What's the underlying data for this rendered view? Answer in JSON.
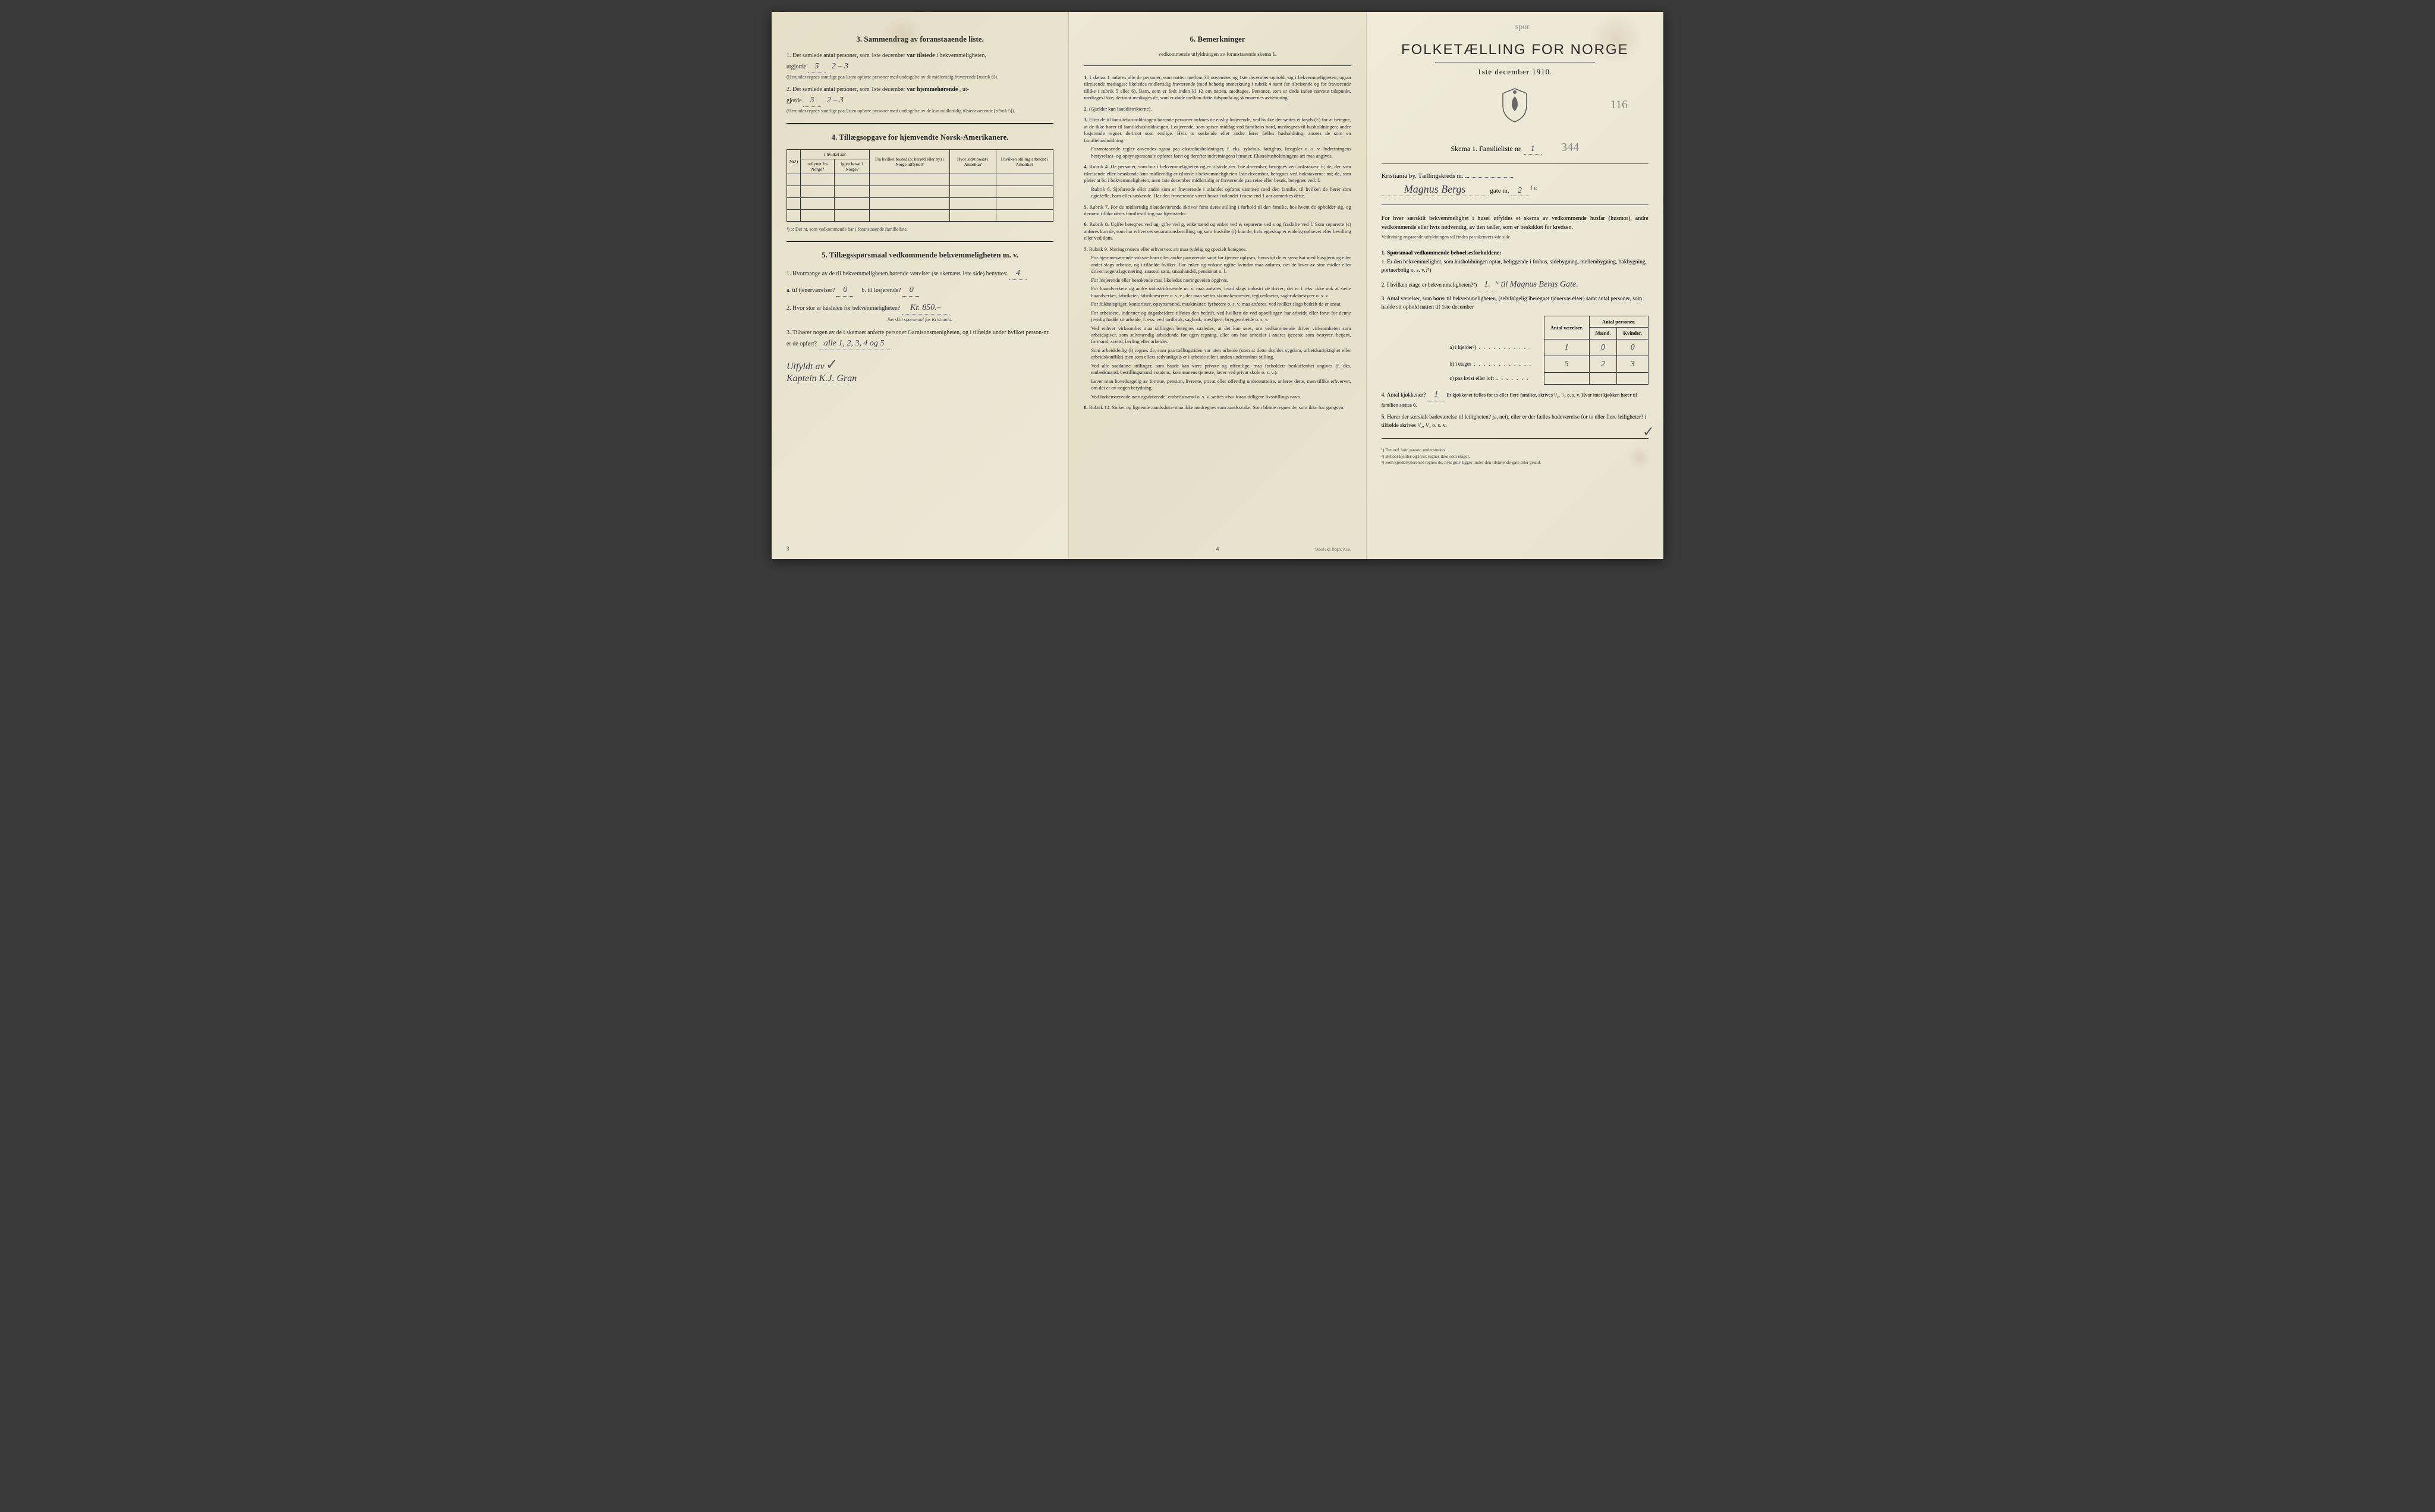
{
  "colors": {
    "paper": "#e8e2d0",
    "ink": "#2a2a2a",
    "pencil": "#888888",
    "handwriting": "#3a3a4a",
    "background": "#3a3a3a"
  },
  "left_panel": {
    "section3": {
      "title": "3.  Sammendrag av foranstaaende liste.",
      "item1_prefix": "1.  Det samlede antal personer, som 1ste december",
      "item1_bold": "var tilstede",
      "item1_suffix": "i bekvemmeligheten,",
      "item1_label": "utgjorde",
      "item1_value": "5",
      "item1_hand": "2 – 3",
      "item1_note": "(Herunder regnes samtlige paa listen opførte personer med undtagelse av de midlertidig fraværende [rubrik 6]).",
      "item2_prefix": "2.  Det samlede antal personer, som 1ste december",
      "item2_bold": "var hjemmehørende",
      "item2_suffix": ", ut-",
      "item2_label": "gjorde",
      "item2_value": "5",
      "item2_hand": "2 – 3",
      "item2_note": "(Herunder regnes samtlige paa listen opførte personer med undtagelse av de kun midlertidig tilstedeværende [rubrik 5])."
    },
    "section4": {
      "title": "4.  Tillægsopgave for hjemvendte Norsk-Amerikanere.",
      "table": {
        "headers": {
          "nr": "Nr.¹)",
          "col1_top": "I hvilket aar",
          "col1a": "utflyttet fra Norge?",
          "col1b": "igjen bosat i Norge?",
          "col2": "Fra hvilket bosted (ɔ: herred eller by) i Norge utflyttet?",
          "col3": "Hvor sidst bosat i Amerika?",
          "col4": "I hvilken stilling arbeidet i Amerika?"
        },
        "rows": 4
      },
      "footnote": "¹) ɔ: Det nr. som vedkommende har i foranstaaende familieliste."
    },
    "section5": {
      "title": "5.  Tillægsspørsmaal vedkommende bekvemmeligheten m. v.",
      "q1": "1. Hvormange av de til bekvemmeligheten hørende værelser (se skemæts 1ste side) benyttes:",
      "q1_value": "4",
      "q1a_label": "a.  til tjenerværelser?",
      "q1a_value": "0",
      "q1b_label": "b.  til losjerende?",
      "q1b_value": "0",
      "q2": "2. Hvor stor er husleien for bekvemmeligheten?",
      "q2_value": "Kr. 850.–",
      "q2_note": "Særskilt spørsmaal for Kristiania:",
      "q3": "3. Tilhører nogen av de i skemaet anførte personer Garnisonsmenigheten, og i tilfælde under hvilket person-nr. er de opført?",
      "q3_value": "alle 1, 2, 3, 4 og 5",
      "signature_prefix": "Utfyldt av",
      "signature": "Kaptein K.J. Gran"
    },
    "page_num": "3"
  },
  "middle_panel": {
    "title": "6.  Bemerkninger",
    "subtitle": "vedkommende utfyldningen av foranstaaende skema 1.",
    "items": [
      {
        "num": "1.",
        "text": "I skema 1 anføres alle de personer, som natten mellem 30 november og 1ste december opholdt sig i bekvemmeligheten; ogsaa tilreisende medtages; likeledes midlertidig fraværende (med behørig anmerkning i rubrik 4 samt for tilreisende og for fraværende tillike i rubrik 5 eller 6). Barn, som er født inden kl 12 om natten, medtages. Personer, som er døde inden nævnte tidspunkt, medtages ikke; derimot medtages de, som er døde mellem dette tidspunkt og skemaernes avhentning."
      },
      {
        "num": "2.",
        "text": "(Gjælder kun landdistrikterne)."
      },
      {
        "num": "3.",
        "text": "Efter de til familiehusholdningen hørende personer anføres de enslig losjerende, ved hvilke der sættes et kryds (×) for at betegne, at de ikke hører til familiehusholdningen. Losjerende, som spiser middag ved familiens bord, medregnes til husholdningen; andre losjerende regnes derimot som enslige. Hvis to søskende eller andre fører fælles husholdning, ansees de som en familiehusholdning.",
        "extra": "Foranstaaende regler anvendes ogsaa paa ekstrahusholdninger, f. eks. sykehus, fattighus, fængsler o. s. v. Indretningens bestyrelses- og opsynspersonale opføres først og derefter indretningens lemmer. Ekstrahusholdningens art maa angives."
      },
      {
        "num": "4.",
        "text": "Rubrik 4. De personer, som bor i bekvemmeligheten og er tilstede der 1ste december, betegnes ved bokstaven: b; de, der som tilreisende eller besøkende kun midlertidig er tilstede i bekvemmeligheten 1ste december, betegnes ved bokstaverne: mt; de, som pleier at bo i bekvemmeligheten, men 1ste december midlertidig er fraværende paa reise eller besøk, betegnes ved: f.",
        "extra": "Rubrik 6. Sjøfarende eller andre som er fraværende i utlandet opføres sammen med den familie, til hvilken de hører som egtefælle, barn eller søskende. Har den fraværende været bosat i utlandet i mere end 1 aar anmerkes dette."
      },
      {
        "num": "5.",
        "text": "Rubrik 7. For de midlertidig tilstedeværende skrives først deres stilling i forhold til den familie, hos hvem de opholder sig, og dernæst tillike deres familiestilling paa hjemstedet."
      },
      {
        "num": "6.",
        "text": "Rubrik 8. Ugifte betegnes ved ug, gifte ved g, enkemænd og enker ved e, separerte ved s og fraskilte ved f. Som separerte (s) anføres kun de, som har erhvervet separationsbevilling, og som fraskilte (f) kun de, hvis egteskap er endelig ophævet efter bevilling eller ved dom."
      },
      {
        "num": "7.",
        "text": "Rubrik 9. Næringsveiens eller erhvervets art maa tydelig og specielt betegnes.",
        "extra": "For hjemmeværende voksne barn eller andre paarørende samt for tjenere oplyses, hvorvidt de er sysselsat med husgjerning eller andet slags arbeide, og i tilfælde hvilket. For enker og voksne ugifte kvinder maa anføres, om de lever av sine midler eller driver nogenslags næring, saasom søm, smaahandel, pensionat o. l.",
        "extra2": "For losjerende eller besøkende maa likeledes næringsveien opgives.",
        "extra3": "For haandverkere og andre industridrivende m. v. maa anføres, hvad slags industri de driver; det er f. eks. ikke nok at sætte haandverker, fabrikeier, fabrikbestyrer o. s. v.; der maa sættes skomakermester, teglverkseier, sagbruksbestyrer o. s. v.",
        "extra4": "For fuldmægtiger, kontorister, opsynsmænd, maskinister, fyrbøtere o. s. v. maa anføres, ved hvilket slags bedrift de er ansat.",
        "extra5": "For arbeidere, inderster og dagarbeidere tilføies den bedrift, ved hvilken de ved optællingen har arbeide eller forut for denne jevnlig hadde sit arbeide, f. eks. ved jordbruk, sagbruk, træsliperi, bryggearbeide o. s. v.",
        "extra6": "Ved enhver virksomhet maa stillingen betegnes saaledes, at det kan sees, om vedkommende driver virksomheten som arbeidsgiver, som selvstændig arbeidende for egen regning, eller om han arbeider i andres tjeneste som bestyrer, betjent, formand, svend, lærling eller arbeider.",
        "extra7": "Som arbeidsledig (l) regnes de, som paa tællingstiden var uten arbeide (uten at dette skyldes sygdom, arbeidsudyktighet eller arbeidskonflikt) men som ellers sedvanligvis er i arbeide eller i anden underordnet stilling.",
        "extra8": "Ved alle saadanne stillinger, som baade kan være private og offentlige, maa forholdets beskaffenhet angives (f. eks. embedsmand, bestillingsmand i statens, kommunens tjeneste, lærer ved privat skole o. s. v.).",
        "extra9": "Lever man hovedsagelig av formue, pension, livrente, privat eller offentlig understøttelse, anføres dette, men tillike erhvervet, om det er av nogen betydning.",
        "extra10": "Ved forhenværende næringsdrivende, embedsmænd o. s. v. sættes «fv» foran tidligere livsstillings navn."
      },
      {
        "num": "8.",
        "text": "Rubrik 14. Sinker og lignende aandssløve maa ikke medregnes som aandssvake. Som blinde regnes de, som ikke har gangsyn."
      }
    ],
    "page_num": "4",
    "printer": "Steen'ske Bogtr.  Kr.a."
  },
  "right_panel": {
    "pencil_top": "spor",
    "main_title": "FOLKETÆLLING FOR NORGE",
    "date": "1ste december 1910.",
    "pencil_num": "116",
    "skema_label": "Skema 1.    Familieliste nr.",
    "skema_value": "1",
    "pencil_right": "344",
    "location_label": "Kristiania by.   Tællingskreds nr.",
    "location_value": "",
    "street_hand": "Magnus Bergs",
    "street_suffix": "gate nr.",
    "street_num": "2",
    "street_superscript": "I v.",
    "intro": "For hver særskilt bekvemmelighet i huset utfyldes et skema av vedkommende husfar (husmor), andre vedkommende eller hvis nødvendig, av den tæller, som er beskikket for kredsen.",
    "intro_note": "Veiledning angaaende utfyldningen vil findes paa skemæts 4de side.",
    "section1_title": "1. Spørsmaal vedkommende beboelsesforholdene:",
    "q1": "1. Er den bekvemmelighet, som husholdningen optar, beliggende i forhus, sidebygning, mellembygning, bakbygning, portnerbolig o. s. v.?¹)",
    "q2": "2. I hvilken etage er bekvemmeligheten?²)",
    "q2_value": "1.",
    "q2_superscript": "v.",
    "q2_hand": "til Magnus Bergs Gate.",
    "q3": "3. Antal værelser, som hører til bekvemmeligheten, (selvfølgelig iberegnet tjenerværelser) samt antal personer, som hadde sit ophold natten til 1ste december",
    "count_table": {
      "header_rooms": "Antal værelser.",
      "header_persons": "Antal personer.",
      "header_m": "Mænd.",
      "header_k": "Kvinder.",
      "row_a": "a) i kjelder²)",
      "row_a_vals": [
        "1",
        "0",
        "0"
      ],
      "row_b": "b) i etager",
      "row_b_vals": [
        "5",
        "2",
        "3"
      ],
      "row_c": "c) paa kvist eller loft",
      "row_c_vals": [
        "",
        "",
        ""
      ]
    },
    "q4": "4. Antal kjøkkener?",
    "q4_value": "1",
    "q4_text": "Er kjøkkenet fælles for to eller flere familier, skrives ¹/₂, ¹/₃ o. s. v.   Hvor intet kjøkken hører til familien sættes 0.",
    "q5": "5. Hører der særskilt badeværelse til leiligheten?  ja, nei), eller er der fælles badeværelse for to eller flere leiligheter?  i tilfælde skrives ¹/₂, ¹/₃ o. s. v.",
    "q5_underline": "ja",
    "footnotes": [
      "¹) Det ord, som passer, understrekes.",
      "²) Beboet kjelder og kvist regnes ikke som etager.",
      "³) Som kjeldervæerelser regnes de, hvis gulv ligger under den tilstøtende gate eller grund."
    ]
  }
}
